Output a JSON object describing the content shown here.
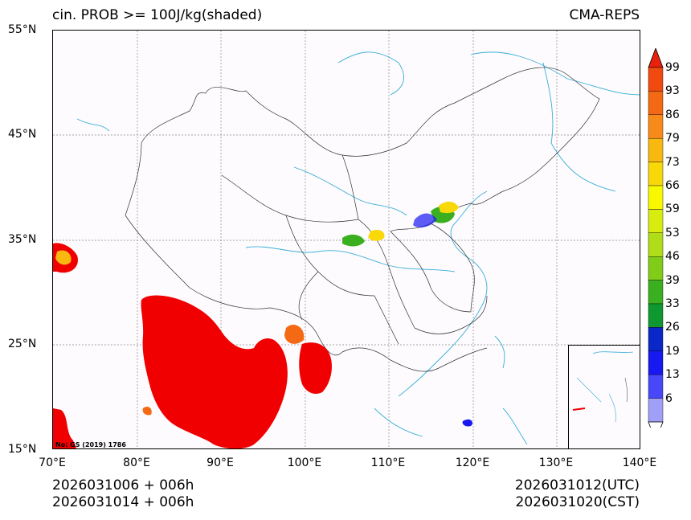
{
  "header": {
    "title_left": "cin. PROB >= 100J/kg(shaded)",
    "title_right": "CMA-REPS"
  },
  "axes": {
    "lat_labels": [
      "55°N",
      "45°N",
      "35°N",
      "25°N",
      "15°N"
    ],
    "lon_labels": [
      "70°E",
      "80°E",
      "90°E",
      "100°E",
      "110°E",
      "120°E",
      "130°E",
      "140°E"
    ]
  },
  "footer": {
    "left_line1": "2026031006  +  006h",
    "left_line2": "2026031014  +  006h",
    "right_line1": "2026031012(UTC)",
    "right_line2": "2026031020(CST)"
  },
  "watermark": "No: GS (2019) 1786",
  "colorbar": {
    "levels": [
      "99",
      "93",
      "86",
      "79",
      "73",
      "66",
      "59",
      "53",
      "46",
      "39",
      "33",
      "26",
      "19",
      "13",
      "6"
    ],
    "colors": [
      "#e8200c",
      "#f04a10",
      "#f46a14",
      "#f78a18",
      "#f8b810",
      "#f8d808",
      "#f8f800",
      "#d8ec10",
      "#b0dc18",
      "#80cc18",
      "#3ab020",
      "#109830",
      "#0a28c8",
      "#1818f0",
      "#4848f8",
      "#a0a0f8"
    ]
  },
  "colors": {
    "land_border": "#333333",
    "water": "#3aaed8",
    "high_prob": "#f00000"
  }
}
